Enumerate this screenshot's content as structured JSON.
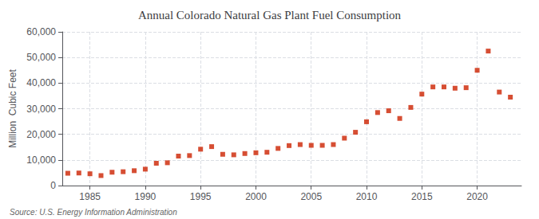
{
  "chart_data": {
    "type": "scatter",
    "title": "Annual Colorado Natural Gas Plant Fuel Consumption",
    "ylabel": "Million  Cubic Feet",
    "annotations": [
      "Source: U.S. Energy Information Administration"
    ],
    "x": [
      1983,
      1984,
      1985,
      1986,
      1987,
      1988,
      1989,
      1990,
      1991,
      1992,
      1993,
      1994,
      1995,
      1996,
      1997,
      1998,
      1999,
      2000,
      2001,
      2002,
      2003,
      2004,
      2005,
      2006,
      2007,
      2008,
      2009,
      2010,
      2011,
      2012,
      2013,
      2014,
      2015,
      2016,
      2017,
      2018,
      2019,
      2020,
      2021,
      2022,
      2023
    ],
    "values": [
      4800,
      4900,
      4600,
      3900,
      5200,
      5400,
      5800,
      6400,
      8700,
      8900,
      11500,
      11700,
      14200,
      15200,
      12200,
      12000,
      12500,
      12800,
      13000,
      14500,
      15600,
      16000,
      15700,
      15700,
      16000,
      18500,
      20800,
      24900,
      28500,
      29200,
      26200,
      30500,
      35700,
      38500,
      38500,
      38000,
      38200,
      45000,
      52500,
      36500,
      34500
    ],
    "color": "#cc2200",
    "marker": "square",
    "xlim": [
      1982.5,
      2024
    ],
    "xticks": [
      1985,
      1990,
      1995,
      2000,
      2005,
      2010,
      2015,
      2020
    ],
    "ylim": [
      0,
      60000
    ],
    "yticks": [
      0,
      {
        "value": 10000,
        "label": "10,000"
      },
      {
        "value": 20000,
        "label": "20,000"
      },
      {
        "value": 30000,
        "label": "30,000"
      },
      {
        "value": 40000,
        "label": "40,000"
      },
      {
        "value": 50000,
        "label": "50,000"
      },
      {
        "value": 60000,
        "label": "60,000"
      }
    ],
    "grid": true
  }
}
